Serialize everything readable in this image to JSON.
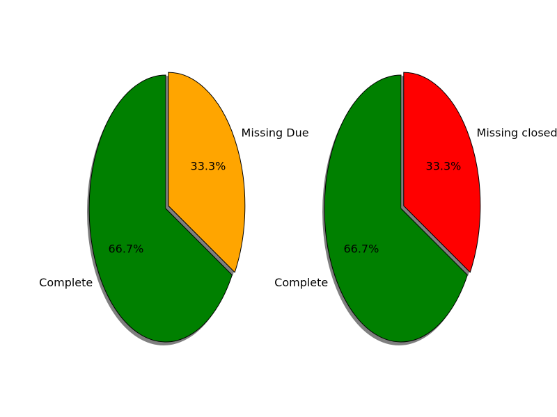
{
  "chart_data": [
    {
      "type": "pie",
      "categories": [
        "Complete",
        "Missing Due"
      ],
      "values": [
        66.7,
        33.3
      ],
      "pct_labels": [
        "66.7%",
        "33.3%"
      ],
      "colors": [
        "#008000",
        "#ffa500"
      ],
      "explode": [
        0,
        1
      ],
      "start_angle": 90,
      "shadow": true,
      "title": ""
    },
    {
      "type": "pie",
      "categories": [
        "Complete",
        "Missing closed"
      ],
      "values": [
        66.7,
        33.3
      ],
      "pct_labels": [
        "66.7%",
        "33.3%"
      ],
      "colors": [
        "#008000",
        "#ff0000"
      ],
      "explode": [
        0,
        1
      ],
      "start_angle": 90,
      "shadow": true,
      "title": ""
    }
  ]
}
